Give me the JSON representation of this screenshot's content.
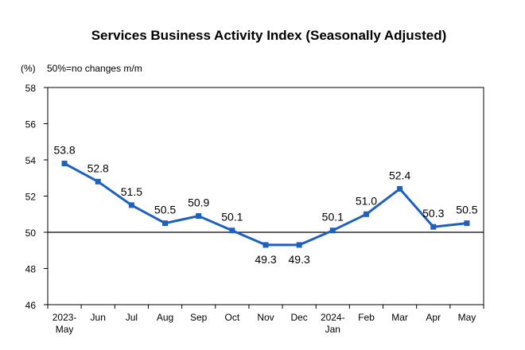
{
  "chart_data": {
    "type": "line",
    "title": "Services Business Activity Index (Seasonally Adjusted)",
    "unit_label": "(%)",
    "note": "50%=no changes m/m",
    "categories": [
      [
        "2023-",
        "May"
      ],
      [
        "Jun"
      ],
      [
        "Jul"
      ],
      [
        "Aug"
      ],
      [
        "Sep"
      ],
      [
        "Oct"
      ],
      [
        "Nov"
      ],
      [
        "Dec"
      ],
      [
        "2024-",
        "Jan"
      ],
      [
        "Feb"
      ],
      [
        "Mar"
      ],
      [
        "Apr"
      ],
      [
        "May"
      ]
    ],
    "series": [
      {
        "values": [
          53.8,
          52.8,
          51.5,
          50.5,
          50.9,
          50.1,
          49.3,
          49.3,
          50.1,
          51.0,
          52.4,
          50.3,
          50.5
        ]
      }
    ],
    "labels": [
      "53.8",
      "52.8",
      "51.5",
      "50.5",
      "50.9",
      "50.1",
      "49.3",
      "49.3",
      "50.1",
      "51.0",
      "52.4",
      "50.3",
      "50.5"
    ],
    "label_positions": [
      "above",
      "above",
      "above",
      "above",
      "above",
      "above",
      "below",
      "below",
      "above",
      "above",
      "above",
      "above",
      "above"
    ],
    "ylim": [
      46,
      58
    ],
    "yticks": [
      46,
      48,
      50,
      52,
      54,
      56,
      58
    ],
    "reference_line": 50,
    "colors": {
      "line": "#1f5fbf",
      "axis": "#000000",
      "reference": "#000000"
    }
  }
}
